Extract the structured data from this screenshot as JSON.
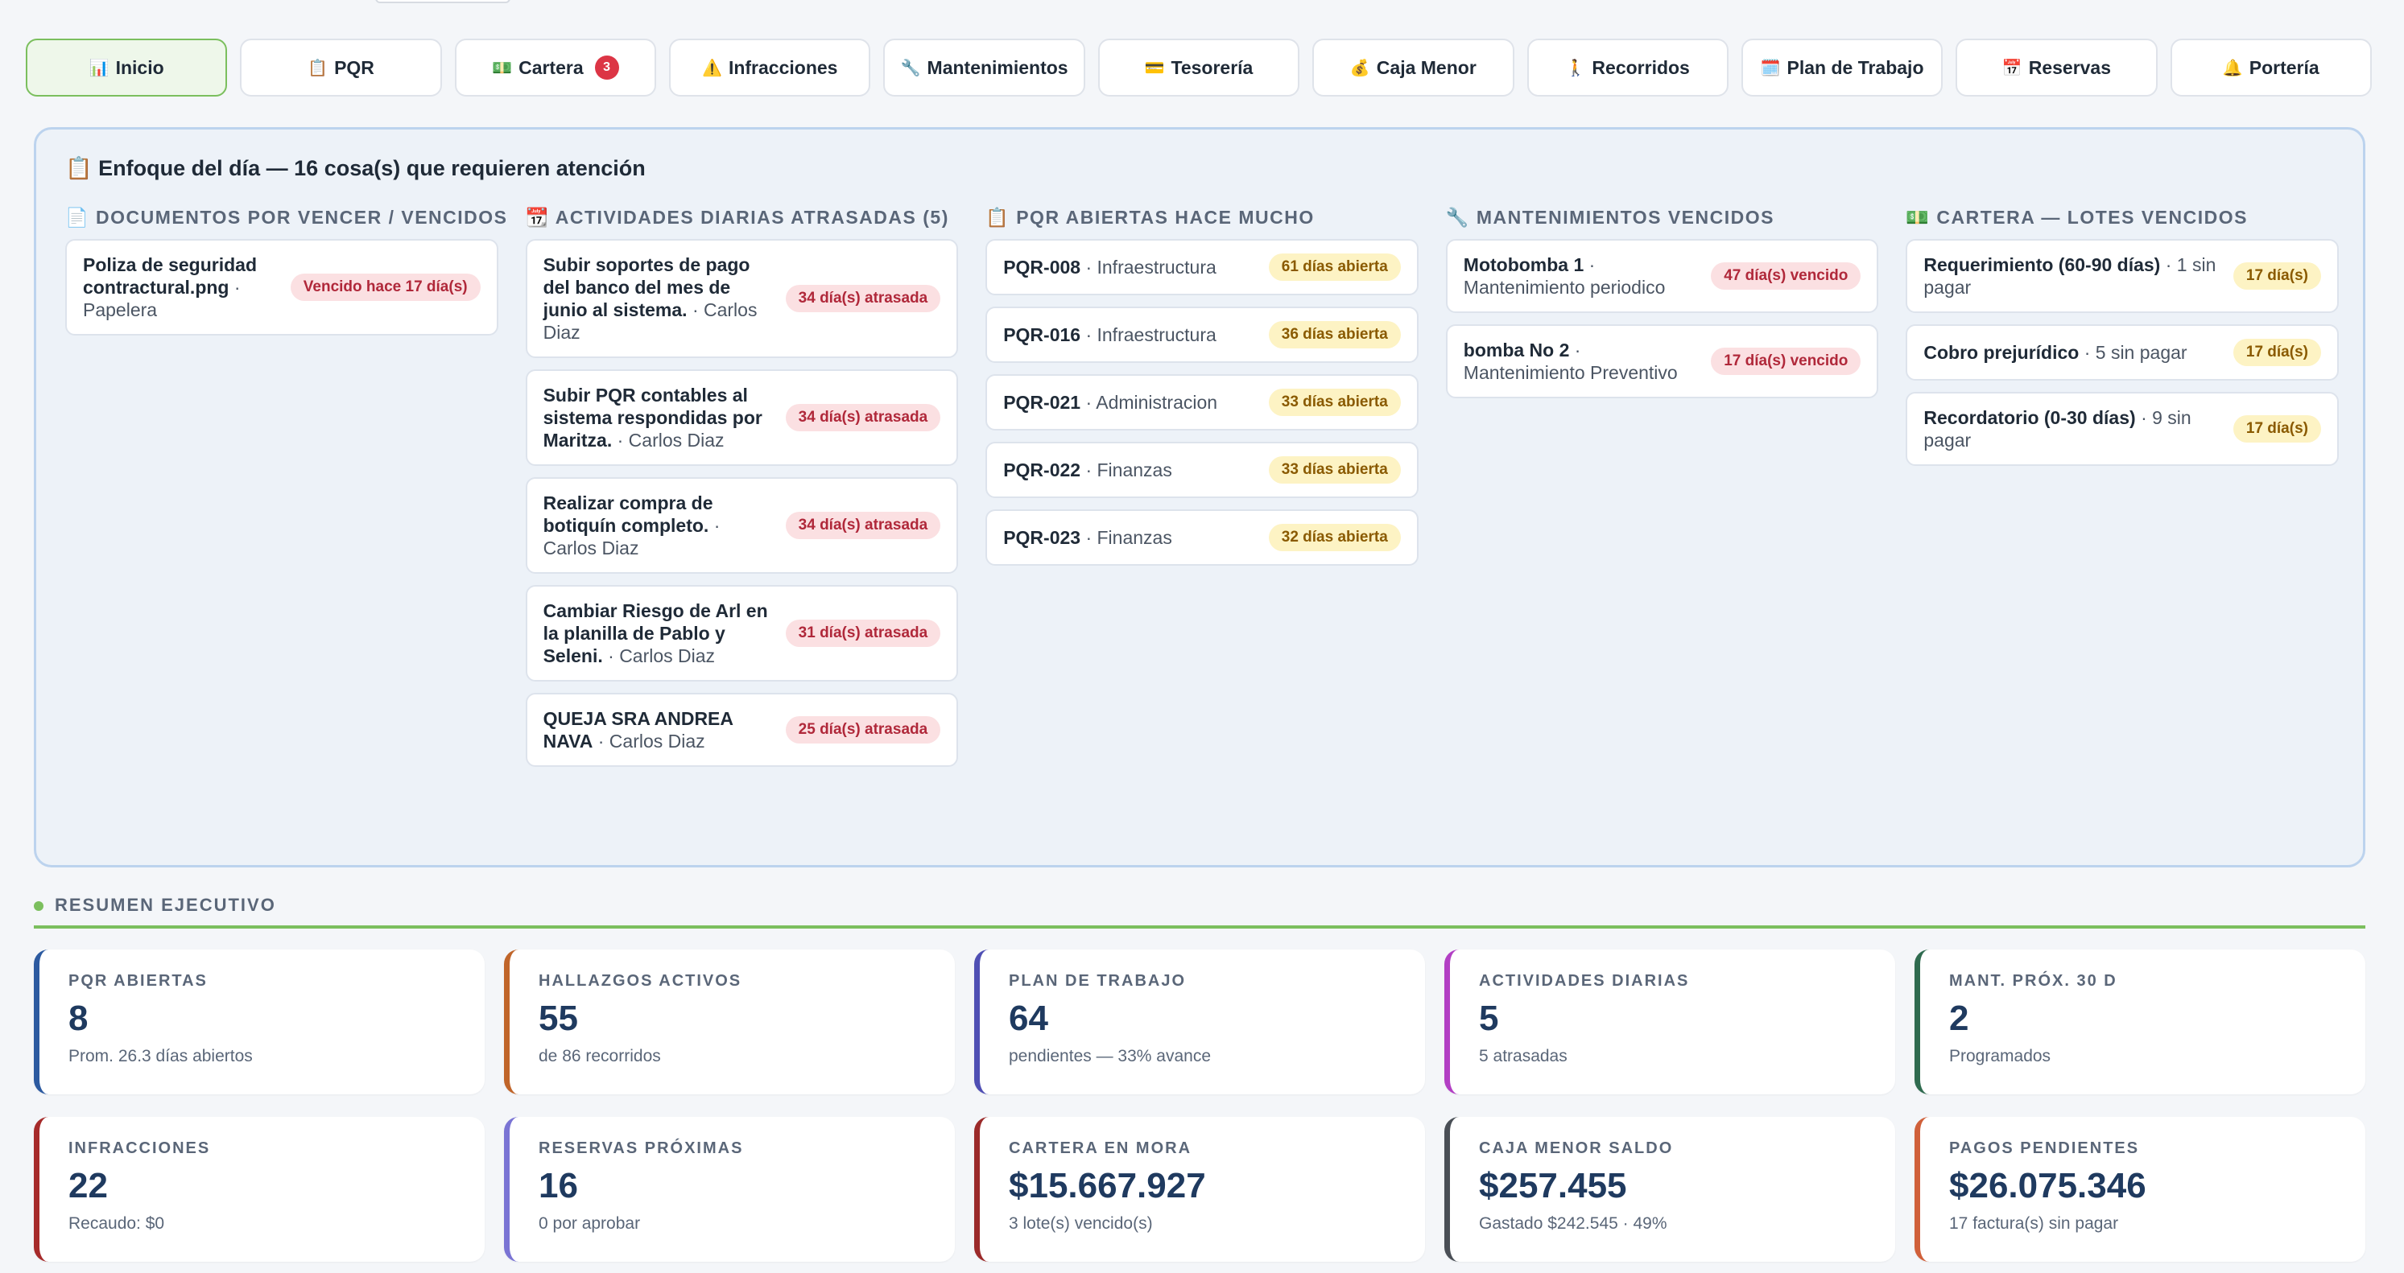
{
  "tabs": [
    {
      "icon": "📊",
      "label": "Inicio",
      "active": true
    },
    {
      "icon": "📋",
      "label": "PQR"
    },
    {
      "icon": "💵",
      "label": "Cartera",
      "badge": "3"
    },
    {
      "icon": "⚠️",
      "label": "Infracciones"
    },
    {
      "icon": "🔧",
      "label": "Mantenimientos"
    },
    {
      "icon": "💳",
      "label": "Tesorería"
    },
    {
      "icon": "💰",
      "label": "Caja Menor"
    },
    {
      "icon": "🚶",
      "label": "Recorridos"
    },
    {
      "icon": "🗓️",
      "label": "Plan de Trabajo"
    },
    {
      "icon": "📅",
      "label": "Reservas"
    },
    {
      "icon": "🔔",
      "label": "Portería"
    }
  ],
  "focus": {
    "icon": "📋",
    "title": "Enfoque del día — 16 cosa(s) que requieren atención",
    "columns": [
      {
        "icon": "📄",
        "title": "DOCUMENTOS POR VENCER / VENCIDOS",
        "items": [
          {
            "main": "Poliza de seguridad contractural.png",
            "sub": "· Papelera",
            "badge": "Vencido hace 17 día(s)",
            "color": "red"
          }
        ]
      },
      {
        "icon": "📆",
        "title": "ACTIVIDADES DIARIAS ATRASADAS (5)",
        "items": [
          {
            "main": "Subir soportes de pago del banco del mes de junio al sistema.",
            "sub": "· Carlos Diaz",
            "badge": "34 día(s) atrasada",
            "color": "red"
          },
          {
            "main": "Subir PQR contables al sistema respondidas por Maritza.",
            "sub": "· Carlos Diaz",
            "badge": "34 día(s) atrasada",
            "color": "red"
          },
          {
            "main": "Realizar compra de botiquín completo.",
            "sub": "· Carlos Diaz",
            "badge": "34 día(s) atrasada",
            "color": "red"
          },
          {
            "main": "Cambiar Riesgo de Arl en la planilla de Pablo y Seleni.",
            "sub": "· Carlos Diaz",
            "badge": "31 día(s) atrasada",
            "color": "red"
          },
          {
            "main": "QUEJA SRA ANDREA NAVA",
            "sub": "· Carlos Diaz",
            "badge": "25 día(s) atrasada",
            "color": "red"
          }
        ]
      },
      {
        "icon": "📋",
        "title": "PQR ABIERTAS HACE MUCHO",
        "items": [
          {
            "main": "PQR-008",
            "sub": "· Infraestructura",
            "badge": "61 días abierta",
            "color": "yellow"
          },
          {
            "main": "PQR-016",
            "sub": "· Infraestructura",
            "badge": "36 días abierta",
            "color": "yellow"
          },
          {
            "main": "PQR-021",
            "sub": "· Administracion",
            "badge": "33 días abierta",
            "color": "yellow"
          },
          {
            "main": "PQR-022",
            "sub": "· Finanzas",
            "badge": "33 días abierta",
            "color": "yellow"
          },
          {
            "main": "PQR-023",
            "sub": "· Finanzas",
            "badge": "32 días abierta",
            "color": "yellow"
          }
        ]
      },
      {
        "icon": "🔧",
        "title": "MANTENIMIENTOS VENCIDOS",
        "items": [
          {
            "main": "Motobomba 1",
            "sub": "· Mantenimiento periodico",
            "badge": "47 día(s) vencido",
            "color": "red"
          },
          {
            "main": "bomba No 2",
            "sub": "· Mantenimiento Preventivo",
            "badge": "17 día(s) vencido",
            "color": "red"
          }
        ]
      },
      {
        "icon": "💵",
        "title": "CARTERA — LOTES VENCIDOS",
        "items": [
          {
            "main": "Requerimiento (60-90 días)",
            "sub": "· 1 sin pagar",
            "badge": "17 día(s)",
            "color": "yellow"
          },
          {
            "main": "Cobro prejurídico",
            "sub": "· 5 sin pagar",
            "badge": "17 día(s)",
            "color": "yellow"
          },
          {
            "main": "Recordatorio (0-30 días)",
            "sub": "· 9 sin pagar",
            "badge": "17 día(s)",
            "color": "yellow"
          }
        ]
      }
    ]
  },
  "resumen": {
    "label": "RESUMEN EJECUTIVO",
    "kpis": [
      {
        "label": "PQR ABIERTAS",
        "value": "8",
        "sub": "Prom. 26.3 días abiertos",
        "color": "#2c5aa0"
      },
      {
        "label": "HALLAZGOS ACTIVOS",
        "value": "55",
        "sub": "de 86 recorridos",
        "color": "#c0652a"
      },
      {
        "label": "PLAN DE TRABAJO",
        "value": "64",
        "sub": "pendientes — 33% avance",
        "color": "#4f4fb4"
      },
      {
        "label": "ACTIVIDADES DIARIAS",
        "value": "5",
        "sub": "5 atrasadas",
        "color": "#b23fc4"
      },
      {
        "label": "MANT. PRÓX. 30 D",
        "value": "2",
        "sub": "Programados",
        "color": "#2f6b4f"
      },
      {
        "label": "INFRACCIONES",
        "value": "22",
        "sub": "Recaudo: $0",
        "color": "#a62b2b"
      },
      {
        "label": "RESERVAS PRÓXIMAS",
        "value": "16",
        "sub": "0 por aprobar",
        "color": "#7a74d4"
      },
      {
        "label": "CARTERA EN MORA",
        "value": "$15.667.927",
        "sub": "3 lote(s) vencido(s)",
        "color": "#9b2a2a"
      },
      {
        "label": "CAJA MENOR SALDO",
        "value": "$257.455",
        "sub": "Gastado $242.545 · 49%",
        "color": "#4a4f56"
      },
      {
        "label": "PAGOS PENDIENTES",
        "value": "$26.075.346",
        "sub": "17 factura(s) sin pagar",
        "color": "#d0603a"
      }
    ]
  }
}
